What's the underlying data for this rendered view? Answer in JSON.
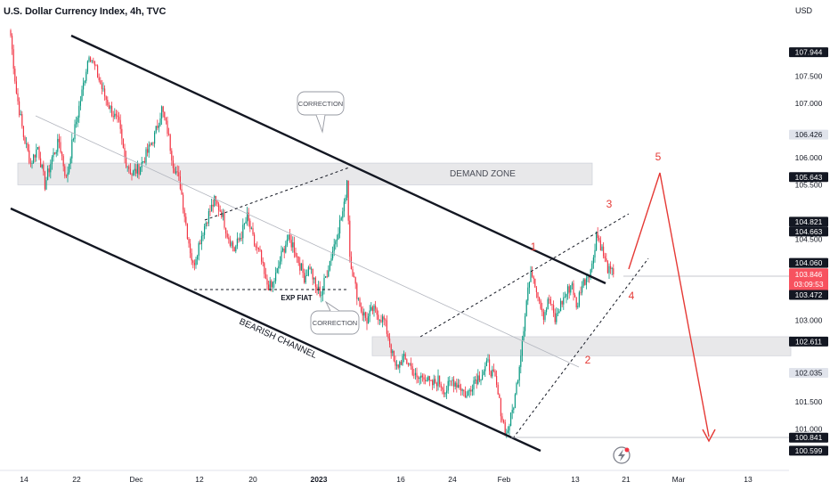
{
  "header": {
    "title": "U.S. Dollar Currency Index, 4h, TVC",
    "currency": "USD"
  },
  "colors": {
    "up": "#089981",
    "down": "#f23645",
    "current_price_bg": "#f7525f",
    "axis_text": "#131722",
    "label_box": "#f0f3fa",
    "wave": "#e53935"
  },
  "icons": {
    "replay": "lightning-icon"
  },
  "chart_data": {
    "type": "candlestick",
    "title": "U.S. Dollar Currency Index, 4h, TVC",
    "ylabel": "USD",
    "ylim": [
      100.45,
      108.25
    ],
    "y_ticks": [
      "107.500",
      "107.000",
      "106.000",
      "105.500",
      "104.500",
      "103.000",
      "102.000",
      "101.500",
      "101.000"
    ],
    "x_ticks": [
      "14",
      "22",
      "Dec",
      "12",
      "20",
      "2023",
      "16",
      "24",
      "Feb",
      "13",
      "21",
      "Mar",
      "13"
    ],
    "price_tags": [
      {
        "value": 107.944,
        "label": "107.944",
        "style": "dark"
      },
      {
        "value": 106.426,
        "label": "106.426",
        "style": "light"
      },
      {
        "value": 105.643,
        "label": "105.643",
        "style": "dark"
      },
      {
        "value": 104.821,
        "label": "104.821",
        "style": "dark"
      },
      {
        "value": 104.663,
        "label": "104.663",
        "style": "dark"
      },
      {
        "value": 104.06,
        "label": "104.060",
        "style": "dark"
      },
      {
        "value": 103.846,
        "label": "103.846",
        "style": "current"
      },
      {
        "value": 103.472,
        "label": "103.472",
        "style": "dark"
      },
      {
        "value": 102.611,
        "label": "102.611",
        "style": "dark"
      },
      {
        "value": 102.035,
        "label": "102.035",
        "style": "light"
      },
      {
        "value": 100.841,
        "label": "100.841",
        "style": "dark"
      },
      {
        "value": 100.599,
        "label": "100.599",
        "style": "dark"
      }
    ],
    "countdown": "03:09:53",
    "path": [
      [
        0,
        108.25
      ],
      [
        4,
        107.2
      ],
      [
        9,
        106.4
      ],
      [
        14,
        105.9
      ],
      [
        19,
        106.2
      ],
      [
        24,
        105.5
      ],
      [
        29,
        106.0
      ],
      [
        34,
        106.3
      ],
      [
        39,
        105.6
      ],
      [
        44,
        106.4
      ],
      [
        50,
        107.2
      ],
      [
        55,
        107.94
      ],
      [
        60,
        107.6
      ],
      [
        65,
        107.2
      ],
      [
        70,
        106.9
      ],
      [
        76,
        106.6
      ],
      [
        80,
        106.0
      ],
      [
        85,
        105.7
      ],
      [
        90,
        105.8
      ],
      [
        96,
        106.1
      ],
      [
        101,
        106.4
      ],
      [
        106,
        106.9
      ],
      [
        110,
        106.5
      ],
      [
        114,
        105.9
      ],
      [
        119,
        105.5
      ],
      [
        124,
        104.6
      ],
      [
        128,
        104.0
      ],
      [
        133,
        104.5
      ],
      [
        138,
        104.9
      ],
      [
        143,
        105.2
      ],
      [
        148,
        105.0
      ],
      [
        152,
        104.6
      ],
      [
        157,
        104.3
      ],
      [
        162,
        104.6
      ],
      [
        166,
        104.9
      ],
      [
        171,
        104.4
      ],
      [
        175,
        104.2
      ],
      [
        179,
        103.7
      ],
      [
        183,
        103.6
      ],
      [
        187,
        103.9
      ],
      [
        190,
        104.2
      ],
      [
        194,
        104.5
      ],
      [
        198,
        104.4
      ],
      [
        202,
        104.1
      ],
      [
        206,
        103.8
      ],
      [
        210,
        104.0
      ],
      [
        214,
        103.6
      ],
      [
        218,
        103.5
      ],
      [
        222,
        103.9
      ],
      [
        226,
        104.3
      ],
      [
        230,
        104.7
      ],
      [
        234,
        105.1
      ],
      [
        236,
        105.6
      ],
      [
        238,
        104.2
      ],
      [
        242,
        103.6
      ],
      [
        246,
        103.2
      ],
      [
        250,
        103.0
      ],
      [
        254,
        103.2
      ],
      [
        258,
        103.1
      ],
      [
        262,
        103.0
      ],
      [
        266,
        102.6
      ],
      [
        270,
        102.1
      ],
      [
        275,
        102.3
      ],
      [
        280,
        102.2
      ],
      [
        285,
        101.9
      ],
      [
        290,
        102.0
      ],
      [
        295,
        101.8
      ],
      [
        300,
        101.9
      ],
      [
        305,
        101.7
      ],
      [
        310,
        101.9
      ],
      [
        315,
        101.8
      ],
      [
        320,
        101.6
      ],
      [
        325,
        101.9
      ],
      [
        330,
        102.0
      ],
      [
        335,
        102.2
      ],
      [
        340,
        101.9
      ],
      [
        345,
        101.2
      ],
      [
        348,
        100.9
      ],
      [
        351,
        101.2
      ],
      [
        354,
        101.6
      ],
      [
        357,
        102.2
      ],
      [
        360,
        102.9
      ],
      [
        363,
        103.6
      ],
      [
        366,
        103.9
      ],
      [
        370,
        103.5
      ],
      [
        374,
        103.1
      ],
      [
        378,
        103.4
      ],
      [
        382,
        103.0
      ],
      [
        386,
        103.3
      ],
      [
        390,
        103.5
      ],
      [
        394,
        103.7
      ],
      [
        397,
        103.2
      ],
      [
        400,
        103.6
      ],
      [
        404,
        103.8
      ],
      [
        408,
        104.0
      ],
      [
        411,
        104.6
      ],
      [
        414,
        104.4
      ],
      [
        417,
        104.1
      ],
      [
        420,
        103.9
      ],
      [
        423,
        103.85
      ]
    ],
    "zones": [
      {
        "label": "DEMAND ZONE",
        "top": 105.9,
        "bottom": 105.5
      },
      {
        "label": "",
        "top": 102.7,
        "bottom": 102.35
      }
    ],
    "annotations": {
      "channel_label": "BEARISH CHANNEL",
      "correction_1": "CORRECTION",
      "correction_2": "CORRECTION",
      "exp_flat": "EXP FlAT",
      "waves": [
        "1",
        "2",
        "3",
        "4",
        "5"
      ]
    },
    "legend": "none",
    "grid": false
  }
}
